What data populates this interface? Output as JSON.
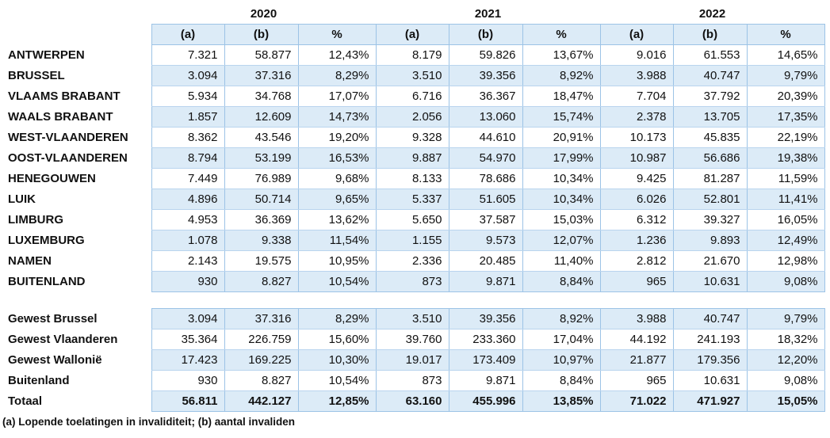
{
  "table": {
    "years": [
      "2020",
      "2021",
      "2022"
    ],
    "column_headers": [
      "(a)",
      "(b)",
      "%",
      "(a)",
      "(b)",
      "%",
      "(a)",
      "(b)",
      "%"
    ],
    "provinces": [
      {
        "label": "ANTWERPEN",
        "values": [
          "7.321",
          "58.877",
          "12,43%",
          "8.179",
          "59.826",
          "13,67%",
          "9.016",
          "61.553",
          "14,65%"
        ]
      },
      {
        "label": "BRUSSEL",
        "values": [
          "3.094",
          "37.316",
          "8,29%",
          "3.510",
          "39.356",
          "8,92%",
          "3.988",
          "40.747",
          "9,79%"
        ]
      },
      {
        "label": "VLAAMS BRABANT",
        "values": [
          "5.934",
          "34.768",
          "17,07%",
          "6.716",
          "36.367",
          "18,47%",
          "7.704",
          "37.792",
          "20,39%"
        ]
      },
      {
        "label": "WAALS BRABANT",
        "values": [
          "1.857",
          "12.609",
          "14,73%",
          "2.056",
          "13.060",
          "15,74%",
          "2.378",
          "13.705",
          "17,35%"
        ]
      },
      {
        "label": "WEST-VLAANDEREN",
        "values": [
          "8.362",
          "43.546",
          "19,20%",
          "9.328",
          "44.610",
          "20,91%",
          "10.173",
          "45.835",
          "22,19%"
        ]
      },
      {
        "label": "OOST-VLAANDEREN",
        "values": [
          "8.794",
          "53.199",
          "16,53%",
          "9.887",
          "54.970",
          "17,99%",
          "10.987",
          "56.686",
          "19,38%"
        ]
      },
      {
        "label": "HENEGOUWEN",
        "values": [
          "7.449",
          "76.989",
          "9,68%",
          "8.133",
          "78.686",
          "10,34%",
          "9.425",
          "81.287",
          "11,59%"
        ]
      },
      {
        "label": "LUIK",
        "values": [
          "4.896",
          "50.714",
          "9,65%",
          "5.337",
          "51.605",
          "10,34%",
          "6.026",
          "52.801",
          "11,41%"
        ]
      },
      {
        "label": "LIMBURG",
        "values": [
          "4.953",
          "36.369",
          "13,62%",
          "5.650",
          "37.587",
          "15,03%",
          "6.312",
          "39.327",
          "16,05%"
        ]
      },
      {
        "label": "LUXEMBURG",
        "values": [
          "1.078",
          "9.338",
          "11,54%",
          "1.155",
          "9.573",
          "12,07%",
          "1.236",
          "9.893",
          "12,49%"
        ]
      },
      {
        "label": "NAMEN",
        "values": [
          "2.143",
          "19.575",
          "10,95%",
          "2.336",
          "20.485",
          "11,40%",
          "2.812",
          "21.670",
          "12,98%"
        ]
      },
      {
        "label": "BUITENLAND",
        "values": [
          "930",
          "8.827",
          "10,54%",
          "873",
          "9.871",
          "8,84%",
          "965",
          "10.631",
          "9,08%"
        ]
      }
    ],
    "regions": [
      {
        "label": "Gewest Brussel",
        "values": [
          "3.094",
          "37.316",
          "8,29%",
          "3.510",
          "39.356",
          "8,92%",
          "3.988",
          "40.747",
          "9,79%"
        ]
      },
      {
        "label": "Gewest Vlaanderen",
        "values": [
          "35.364",
          "226.759",
          "15,60%",
          "39.760",
          "233.360",
          "17,04%",
          "44.192",
          "241.193",
          "18,32%"
        ]
      },
      {
        "label": "Gewest Wallonië",
        "values": [
          "17.423",
          "169.225",
          "10,30%",
          "19.017",
          "173.409",
          "10,97%",
          "21.877",
          "179.356",
          "12,20%"
        ]
      },
      {
        "label": "Buitenland",
        "values": [
          "930",
          "8.827",
          "10,54%",
          "873",
          "9.871",
          "8,84%",
          "965",
          "10.631",
          "9,08%"
        ]
      },
      {
        "label": "Totaal",
        "values": [
          "56.811",
          "442.127",
          "12,85%",
          "63.160",
          "455.996",
          "13,85%",
          "71.022",
          "471.927",
          "15,05%"
        ]
      }
    ],
    "footnote": "(a) Lopende toelatingen in invaliditeit; (b) aantal invaliden",
    "colors": {
      "row_fill": "#dcebf7",
      "border": "#9cc3e6"
    }
  }
}
